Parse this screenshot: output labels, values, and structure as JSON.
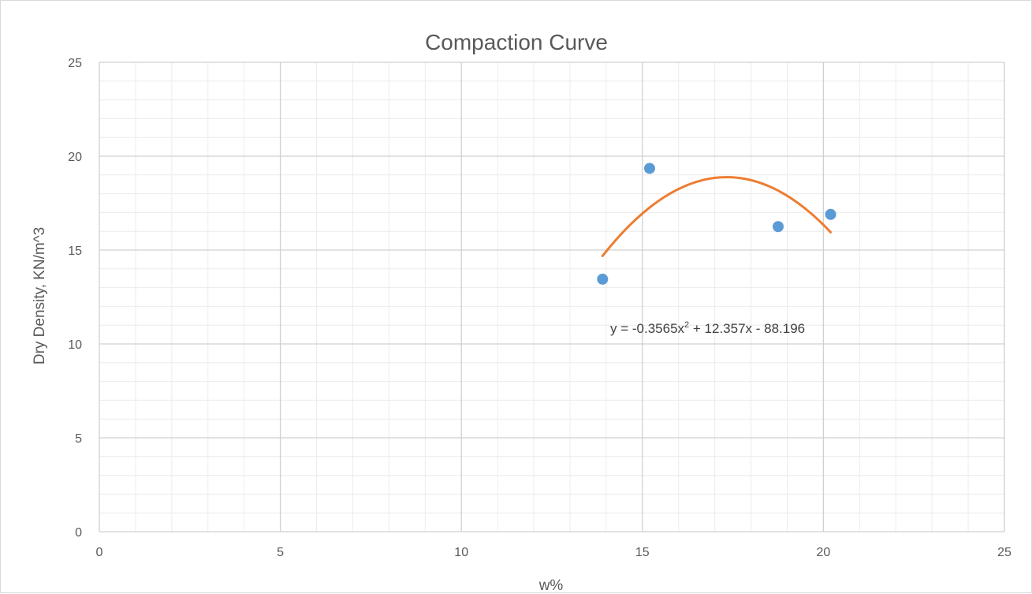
{
  "chart_data": {
    "type": "scatter",
    "title": "Compaction Curve",
    "xlabel": "w%",
    "ylabel": "Dry Density, KN/m^3",
    "xlim": [
      0,
      25
    ],
    "ylim": [
      0,
      25
    ],
    "xticks": [
      0,
      5,
      10,
      15,
      20,
      25
    ],
    "yticks": [
      0,
      5,
      10,
      15,
      20,
      25
    ],
    "x_minor_step": 1,
    "y_minor_step": 1,
    "grid": true,
    "legend": "none",
    "marker_color": "#5b9bd5",
    "trendline_color": "#ed7d31",
    "series": [
      {
        "x": [
          13.9,
          15.2,
          18.75,
          20.2
        ],
        "y": [
          13.45,
          19.35,
          16.25,
          16.9
        ]
      }
    ],
    "trendline": {
      "type": "polynomial",
      "order": 2,
      "coefficients": [
        -0.3565,
        12.357,
        -88.196
      ],
      "x_range": [
        13.9,
        20.2
      ],
      "equation_prefix": "y = -0.3565x",
      "equation_sup": "2",
      "equation_suffix": " + 12.357x - 88.196"
    }
  }
}
